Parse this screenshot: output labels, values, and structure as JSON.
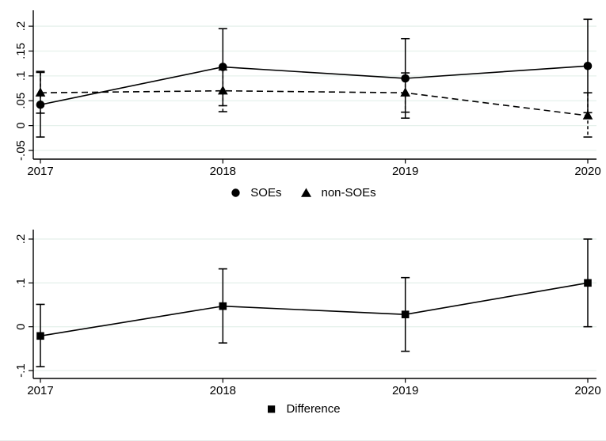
{
  "figure": {
    "background": "#ffffff",
    "colors": {
      "line": "#000000",
      "grid": "#e6f1ec",
      "axis": "#000000",
      "text": "#000000"
    }
  },
  "chart_data": [
    {
      "type": "line",
      "title": "",
      "xlabel": "",
      "ylabel": "",
      "grid": true,
      "legend_position": "bottom-center",
      "x": [
        2017,
        2018,
        2019,
        2020
      ],
      "x_tick_labels": [
        "2017",
        "2018",
        "2019",
        "2020"
      ],
      "y_ticks": [
        -0.05,
        0,
        0.05,
        0.1,
        0.15,
        0.2
      ],
      "y_tick_labels": [
        "-.05",
        "0",
        ".05",
        ".1",
        ".15",
        ".2"
      ],
      "ylim": [
        -0.0675,
        0.232
      ],
      "series": [
        {
          "name": "SOEs",
          "marker": "circle",
          "line_style": "solid",
          "values": [
            0.042,
            0.118,
            0.095,
            0.12
          ],
          "ci_low": [
            -0.023,
            0.04,
            0.015,
            0.026
          ],
          "ci_high": [
            0.109,
            0.195,
            0.175,
            0.214
          ]
        },
        {
          "name": "non-SOEs",
          "marker": "triangle",
          "line_style": "dashed",
          "values": [
            0.066,
            0.07,
            0.066,
            0.02
          ],
          "ci_low": [
            0.025,
            0.028,
            0.027,
            -0.023
          ],
          "ci_high": [
            0.107,
            0.112,
            0.106,
            0.066
          ]
        }
      ]
    },
    {
      "type": "line",
      "title": "",
      "xlabel": "",
      "ylabel": "",
      "grid": true,
      "legend_position": "bottom-center",
      "x": [
        2017,
        2018,
        2019,
        2020
      ],
      "x_tick_labels": [
        "2017",
        "2018",
        "2019",
        "2020"
      ],
      "y_ticks": [
        -0.1,
        0,
        0.1,
        0.2
      ],
      "y_tick_labels": [
        "-.1",
        "0",
        ".1",
        ".2"
      ],
      "ylim": [
        -0.118,
        0.2216
      ],
      "series": [
        {
          "name": "Difference",
          "marker": "square",
          "line_style": "solid",
          "values": [
            -0.021,
            0.047,
            0.028,
            0.1
          ],
          "ci_low": [
            -0.091,
            -0.037,
            -0.056,
            0.0
          ],
          "ci_high": [
            0.051,
            0.132,
            0.112,
            0.2
          ]
        }
      ]
    }
  ]
}
